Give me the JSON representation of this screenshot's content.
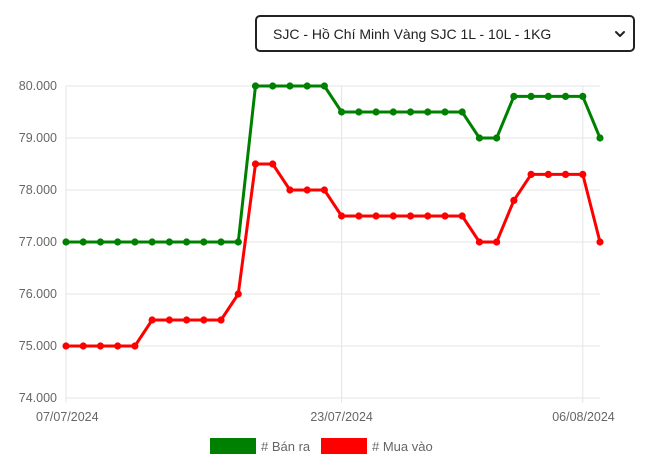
{
  "selector": {
    "selected_label": "SJC - Hồ Chí Minh Vàng SJC 1L - 10L - 1KG",
    "chevron_icon": "chevron-down-icon"
  },
  "chart_data": {
    "type": "line",
    "x_tick_labels": [
      "07/07/2024",
      "23/07/2024",
      "06/08/2024"
    ],
    "x_tick_positions": [
      0,
      16,
      30
    ],
    "y_tick_labels": [
      "80.000",
      "79.000",
      "78.000",
      "77.000",
      "76.000",
      "75.000",
      "74.000"
    ],
    "ylim": [
      74000,
      80000
    ],
    "y_ticks": [
      80000,
      79000,
      78000,
      77000,
      76000,
      75000,
      74000
    ],
    "grid": true,
    "legend_position": "bottom",
    "series": [
      {
        "name": "# Bán ra",
        "color": "#008000",
        "values": [
          77000,
          77000,
          77000,
          77000,
          77000,
          77000,
          77000,
          77000,
          77000,
          77000,
          77000,
          80000,
          80000,
          80000,
          80000,
          80000,
          79500,
          79500,
          79500,
          79500,
          79500,
          79500,
          79500,
          79500,
          79000,
          79000,
          79800,
          79800,
          79800,
          79800,
          79800,
          79000
        ]
      },
      {
        "name": "# Mua vào",
        "color": "#ff0000",
        "values": [
          75000,
          75000,
          75000,
          75000,
          75000,
          75500,
          75500,
          75500,
          75500,
          75500,
          76000,
          78500,
          78500,
          78000,
          78000,
          78000,
          77500,
          77500,
          77500,
          77500,
          77500,
          77500,
          77500,
          77500,
          77000,
          77000,
          77800,
          78300,
          78300,
          78300,
          78300,
          77000
        ]
      }
    ]
  }
}
